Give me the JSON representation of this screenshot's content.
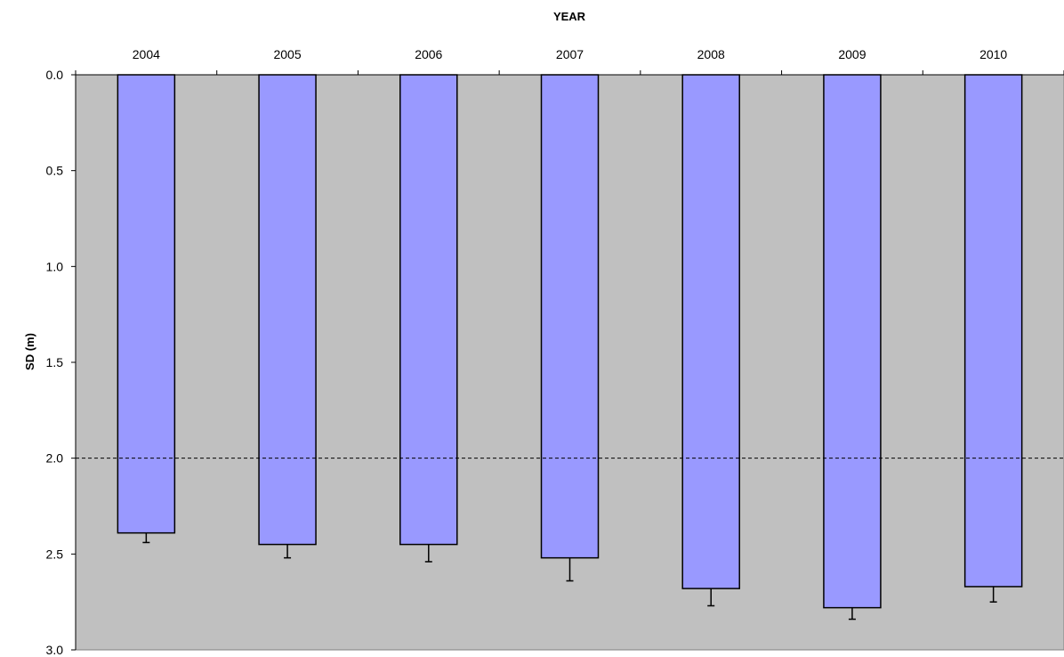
{
  "chart_data": {
    "type": "bar",
    "orientation": "vertical, bars hang down from top axis",
    "xlabel": "YEAR",
    "xaxis_position": "top",
    "ylabel": "SD (m)",
    "yaxis_inverted": true,
    "ylim": [
      0,
      3
    ],
    "yticks": [
      "0.0",
      "0.5",
      "1.0",
      "1.5",
      "2.0",
      "2.5",
      "3.0"
    ],
    "ytick_values": [
      0,
      0.5,
      1.0,
      1.5,
      2.0,
      2.5,
      3.0
    ],
    "categories": [
      "2004",
      "2005",
      "2006",
      "2007",
      "2008",
      "2009",
      "2010"
    ],
    "values": [
      2.39,
      2.45,
      2.45,
      2.52,
      2.68,
      2.78,
      2.67
    ],
    "error_upper": [
      2.44,
      2.52,
      2.54,
      2.64,
      2.77,
      2.84,
      2.75
    ],
    "reference_line": {
      "value": 2.0,
      "style": "dashed"
    },
    "grid": false,
    "legend": "none",
    "colors": {
      "plot_background": "#c0c0c0",
      "bar_fill": "#9999ff",
      "bar_stroke": "#000000"
    }
  }
}
